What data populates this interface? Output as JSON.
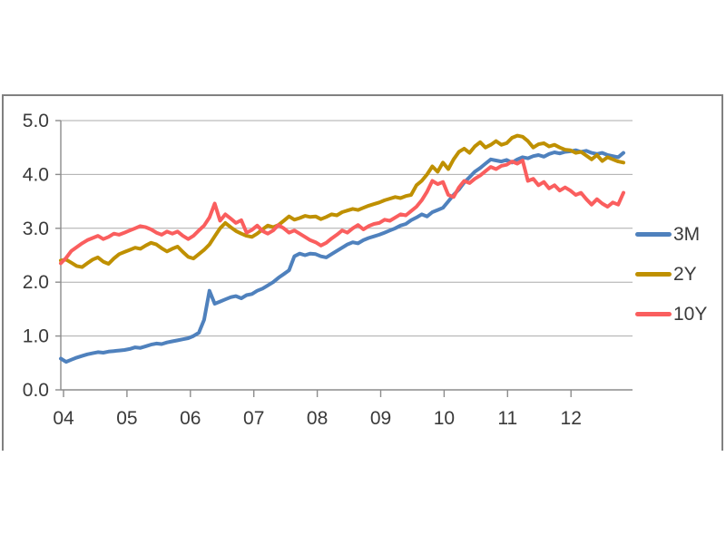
{
  "chart": {
    "frame_border_color": "#808080",
    "background": "#ffffff"
  },
  "chart_data": {
    "type": "line",
    "title": "",
    "xlabel": "",
    "ylabel": "",
    "x_tick_labels": [
      "04",
      "05",
      "06",
      "07",
      "08",
      "09",
      "10",
      "11",
      "12"
    ],
    "y_tick_labels": [
      "0.0",
      "1.0",
      "2.0",
      "3.0",
      "4.0",
      "5.0"
    ],
    "y_tick_values": [
      0,
      1,
      2,
      3,
      4,
      5
    ],
    "ylim": [
      0,
      5
    ],
    "x_range_years": [
      2004,
      2012.9
    ],
    "points_per_year": 12,
    "grid": "horizontal",
    "legend_position": "right",
    "axis_color": "#8c8c8c",
    "grid_color": "#ababab",
    "label_color": "#3a3a3a",
    "series": [
      {
        "name": "3M",
        "color": "#4f81bd",
        "values": [
          0.58,
          0.52,
          0.56,
          0.6,
          0.63,
          0.66,
          0.68,
          0.7,
          0.69,
          0.71,
          0.72,
          0.73,
          0.74,
          0.76,
          0.79,
          0.78,
          0.81,
          0.84,
          0.86,
          0.85,
          0.88,
          0.9,
          0.92,
          0.94,
          0.96,
          1.0,
          1.06,
          1.3,
          1.84,
          1.6,
          1.64,
          1.68,
          1.72,
          1.74,
          1.7,
          1.76,
          1.78,
          1.84,
          1.88,
          1.94,
          2.0,
          2.08,
          2.15,
          2.22,
          2.48,
          2.53,
          2.5,
          2.53,
          2.52,
          2.48,
          2.46,
          2.52,
          2.58,
          2.64,
          2.7,
          2.74,
          2.72,
          2.78,
          2.82,
          2.85,
          2.88,
          2.92,
          2.96,
          3.0,
          3.05,
          3.08,
          3.15,
          3.2,
          3.26,
          3.22,
          3.3,
          3.34,
          3.38,
          3.5,
          3.62,
          3.72,
          3.85,
          3.95,
          4.05,
          4.12,
          4.2,
          4.28,
          4.26,
          4.24,
          4.27,
          4.22,
          4.28,
          4.32,
          4.3,
          4.34,
          4.36,
          4.33,
          4.38,
          4.41,
          4.39,
          4.42,
          4.43,
          4.45,
          4.42,
          4.44,
          4.4,
          4.38,
          4.4,
          4.36,
          4.34,
          4.32,
          4.4
        ]
      },
      {
        "name": "2Y",
        "color": "#bf9000",
        "values": [
          2.4,
          2.42,
          2.36,
          2.3,
          2.28,
          2.35,
          2.42,
          2.46,
          2.38,
          2.34,
          2.44,
          2.52,
          2.56,
          2.6,
          2.64,
          2.62,
          2.68,
          2.73,
          2.7,
          2.63,
          2.57,
          2.62,
          2.66,
          2.56,
          2.47,
          2.44,
          2.52,
          2.6,
          2.7,
          2.85,
          3.0,
          3.1,
          3.02,
          2.95,
          2.9,
          2.86,
          2.84,
          2.9,
          2.98,
          3.05,
          3.02,
          3.06,
          3.14,
          3.22,
          3.16,
          3.19,
          3.23,
          3.21,
          3.22,
          3.17,
          3.21,
          3.26,
          3.24,
          3.3,
          3.33,
          3.36,
          3.34,
          3.38,
          3.42,
          3.45,
          3.48,
          3.52,
          3.55,
          3.58,
          3.56,
          3.6,
          3.62,
          3.8,
          3.88,
          4.0,
          4.15,
          4.05,
          4.22,
          4.1,
          4.28,
          4.42,
          4.48,
          4.4,
          4.52,
          4.6,
          4.5,
          4.55,
          4.62,
          4.55,
          4.58,
          4.68,
          4.72,
          4.7,
          4.62,
          4.5,
          4.56,
          4.58,
          4.52,
          4.55,
          4.5,
          4.46,
          4.45,
          4.4,
          4.42,
          4.35,
          4.28,
          4.36,
          4.25,
          4.32,
          4.28,
          4.24,
          4.22
        ]
      },
      {
        "name": "10Y",
        "color": "#fa5e5e",
        "values": [
          2.35,
          2.45,
          2.58,
          2.65,
          2.72,
          2.78,
          2.82,
          2.86,
          2.8,
          2.84,
          2.9,
          2.88,
          2.92,
          2.96,
          3.0,
          3.04,
          3.02,
          2.98,
          2.92,
          2.88,
          2.94,
          2.9,
          2.94,
          2.86,
          2.8,
          2.86,
          2.96,
          3.05,
          3.2,
          3.46,
          3.14,
          3.26,
          3.18,
          3.1,
          3.15,
          2.92,
          2.97,
          3.05,
          2.95,
          2.9,
          2.96,
          3.06,
          3.0,
          2.92,
          2.96,
          2.9,
          2.84,
          2.78,
          2.74,
          2.68,
          2.73,
          2.81,
          2.88,
          2.96,
          2.92,
          3.0,
          3.06,
          2.98,
          3.04,
          3.08,
          3.1,
          3.16,
          3.14,
          3.2,
          3.26,
          3.24,
          3.32,
          3.4,
          3.52,
          3.68,
          3.88,
          3.82,
          3.86,
          3.62,
          3.58,
          3.76,
          3.88,
          3.84,
          3.92,
          3.98,
          4.06,
          4.14,
          4.1,
          4.16,
          4.18,
          4.24,
          4.2,
          4.26,
          3.88,
          3.92,
          3.8,
          3.86,
          3.74,
          3.8,
          3.7,
          3.76,
          3.7,
          3.62,
          3.66,
          3.54,
          3.44,
          3.54,
          3.46,
          3.4,
          3.48,
          3.44,
          3.66
        ]
      }
    ]
  },
  "legend": {
    "items": [
      "3M",
      "2Y",
      "10Y"
    ]
  }
}
